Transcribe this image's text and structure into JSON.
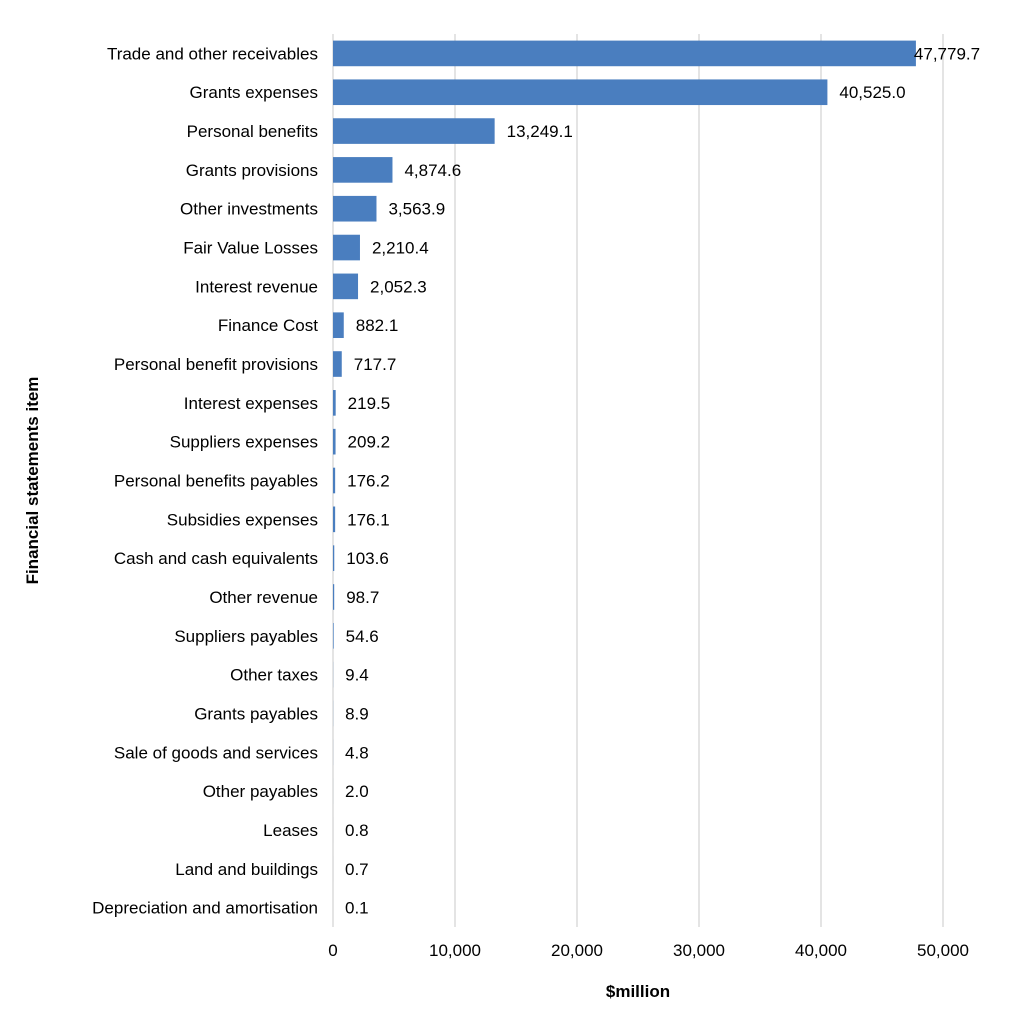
{
  "chart_data": {
    "type": "bar",
    "orientation": "horizontal",
    "title": "",
    "xlabel": "$million",
    "ylabel": "Financial statements item",
    "xlim": [
      0,
      50000
    ],
    "x_ticks": [
      0,
      10000,
      20000,
      30000,
      40000,
      50000
    ],
    "x_tick_labels": [
      "0",
      "10,000",
      "20,000",
      "30,000",
      "40,000",
      "50,000"
    ],
    "grid": "vertical",
    "legend": "none",
    "bar_color": "#4a7ebf",
    "grid_color": "#c8c8c8",
    "categories": [
      "Trade and other receivables",
      "Grants expenses",
      "Personal benefits",
      "Grants provisions",
      "Other investments",
      "Fair Value Losses",
      "Interest revenue",
      "Finance Cost",
      "Personal benefit provisions",
      "Interest expenses",
      "Suppliers expenses",
      "Personal benefits payables",
      "Subsidies expenses",
      "Cash and cash equivalents",
      "Other revenue",
      "Suppliers payables",
      "Other taxes",
      "Grants payables",
      "Sale of goods and services",
      "Other payables",
      "Leases",
      "Land and buildings",
      "Depreciation and amortisation"
    ],
    "values": [
      47779.7,
      40525.0,
      13249.1,
      4874.6,
      3563.9,
      2210.4,
      2052.3,
      882.1,
      717.7,
      219.5,
      209.2,
      176.2,
      176.1,
      103.6,
      98.7,
      54.6,
      9.4,
      8.9,
      4.8,
      2.0,
      0.8,
      0.7,
      0.1
    ],
    "value_labels": [
      "47,779.7",
      "40,525.0",
      "13,249.1",
      "4,874.6",
      "3,563.9",
      "2,210.4",
      "2,052.3",
      "882.1",
      "717.7",
      "219.5",
      "209.2",
      "176.2",
      "176.1",
      "103.6",
      "98.7",
      "54.6",
      "9.4",
      "8.9",
      "4.8",
      "2.0",
      "0.8",
      "0.7",
      "0.1"
    ]
  }
}
